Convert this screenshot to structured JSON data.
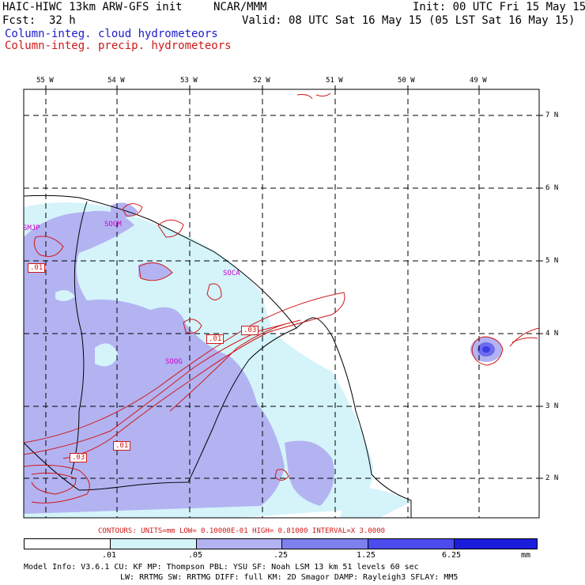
{
  "header": {
    "title_left": "HAIC-HIWC 13km ARW-GFS init",
    "title_center": "NCAR/MMM",
    "init": "Init: 00 UTC Fri 15 May 15",
    "fcst_label": "Fcst:",
    "fcst_value": "32 h",
    "valid": "Valid: 08 UTC Sat 16 May 15 (05 LST Sat 16 May 15)",
    "legend_cloud": "Column-integ. cloud hydrometeors",
    "legend_precip": "Column-integ. precip. hydrometeors"
  },
  "map": {
    "lon_labels": [
      "55 W",
      "54 W",
      "53 W",
      "52 W",
      "51 W",
      "50 W",
      "49 W"
    ],
    "lat_labels": [
      "7 N",
      "6 N",
      "5 N",
      "4 N",
      "3 N",
      "2 N"
    ],
    "stations": [
      "SMJP",
      "SOCM",
      "SOCA",
      "SOOG"
    ],
    "contour_labels": [
      ".01",
      ".03",
      ".01",
      ".01",
      ".03"
    ]
  },
  "contours_note": "CONTOURS:  UNITS=mm  LOW= 0.10000E-01  HIGH= 0.81000     INTERVAL=X  3.0000",
  "colorbar": {
    "ticks": [
      ".01",
      ".05",
      ".25",
      "1.25",
      "6.25"
    ],
    "unit": "mm",
    "colors": [
      "#ffffff",
      "#d4f4fa",
      "#b3b3f2",
      "#7f7fee",
      "#4b4bee",
      "#1c1cdd"
    ]
  },
  "model_info": {
    "line1": "Model Info: V3.6.1   CU: KF     MP: Thompson    PBL: YSU     SF: Noah LSM    13 km   51 levels   60 sec",
    "line2": "LW: RRTMG   SW: RRTMG   DIFF: full    KM: 2D Smagor DAMP: Rayleigh3  SFLAY: MM5"
  }
}
